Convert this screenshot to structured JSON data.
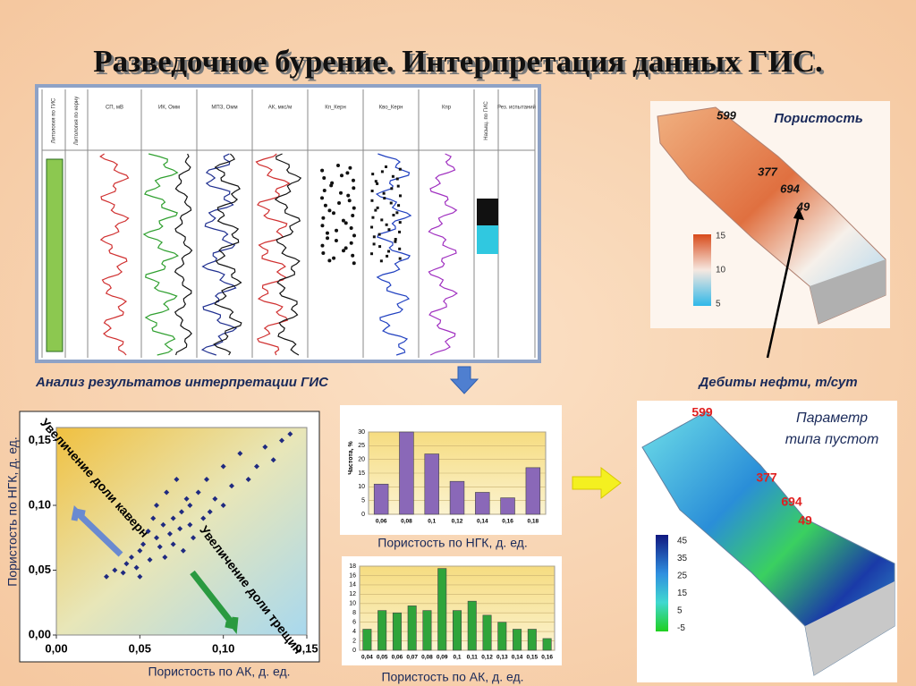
{
  "title": "Разведочное  бурение. Интерпретация данных ГИС.",
  "log_panel": {
    "headers": [
      "Литология по ГИС",
      "Литология по керну",
      "СП, мВ",
      "ИК, Омм",
      "МПЗ, Омм",
      "АК, мкс/м",
      "Кп_Керн",
      "Кво_Керн",
      "Кпр",
      "Насыщ. по ГИС",
      "Рез. испытаний"
    ]
  },
  "captions": {
    "interpretation": "Анализ результатов интерпретации ГИС",
    "oil_rates": "Дебиты нефти, т/сут"
  },
  "porosity_model": {
    "title": "Пористость",
    "wells": [
      "599",
      "377",
      "694",
      "49"
    ],
    "scale": [
      15,
      10,
      5
    ]
  },
  "void_model": {
    "title": [
      "Параметр",
      "типа пустот"
    ],
    "wells": [
      "599",
      "377",
      "694",
      "49"
    ],
    "scale": [
      45,
      35,
      25,
      15,
      5,
      -5
    ]
  },
  "chart_data": [
    {
      "type": "scatter",
      "x_label": "Пористость по АК, д. ед.",
      "y_label": "Пористость по НГК, д. ед.",
      "annotations": [
        "Увеличение доли каверн",
        "Увеличение доли трещин"
      ],
      "color": "#1f2a80",
      "x": [
        0.03,
        0.035,
        0.04,
        0.042,
        0.045,
        0.048,
        0.05,
        0.05,
        0.052,
        0.055,
        0.056,
        0.058,
        0.06,
        0.06,
        0.062,
        0.064,
        0.065,
        0.066,
        0.068,
        0.07,
        0.07,
        0.072,
        0.074,
        0.075,
        0.076,
        0.078,
        0.08,
        0.08,
        0.082,
        0.085,
        0.088,
        0.09,
        0.092,
        0.095,
        0.1,
        0.1,
        0.105,
        0.11,
        0.115,
        0.12,
        0.125,
        0.13,
        0.135,
        0.14
      ],
      "values": [
        0.045,
        0.05,
        0.048,
        0.055,
        0.06,
        0.052,
        0.065,
        0.045,
        0.07,
        0.08,
        0.058,
        0.09,
        0.075,
        0.1,
        0.068,
        0.085,
        0.06,
        0.11,
        0.078,
        0.09,
        0.07,
        0.12,
        0.082,
        0.095,
        0.065,
        0.105,
        0.085,
        0.1,
        0.075,
        0.11,
        0.09,
        0.12,
        0.095,
        0.105,
        0.13,
        0.1,
        0.115,
        0.14,
        0.12,
        0.13,
        0.145,
        0.135,
        0.15,
        0.155
      ],
      "xlim": [
        0,
        0.15
      ],
      "ylim": [
        0,
        0.16
      ],
      "xticks": [
        {
          "value": 0,
          "label": "0,00"
        },
        {
          "value": 0.05,
          "label": "0,05"
        },
        {
          "value": 0.1,
          "label": "0,10"
        },
        {
          "value": 0.15,
          "label": "0,15"
        }
      ],
      "yticks": [
        {
          "value": 0,
          "label": "0,00"
        },
        {
          "value": 0.05,
          "label": "0,05"
        },
        {
          "value": 0.1,
          "label": "0,10"
        },
        {
          "value": 0.15,
          "label": "0,15"
        }
      ]
    },
    {
      "type": "bar",
      "x_label": "Пористость по НГК, д. ед.",
      "y_label": "Частота, %",
      "color": "#8a68b8",
      "categories": [
        "0,06",
        "0,08",
        "0,1",
        "0,12",
        "0,14",
        "0,16",
        "0,18"
      ],
      "values": [
        11,
        30,
        22,
        12,
        8,
        6,
        17
      ],
      "ylim": [
        0,
        30
      ],
      "yticks": [
        0,
        5,
        10,
        15,
        20,
        25,
        30
      ],
      "grid": true
    },
    {
      "type": "bar",
      "x_label": "Пористость по АК, д. ед.",
      "color": "#2fa43a",
      "categories": [
        "0,04",
        "0,05",
        "0,06",
        "0,07",
        "0,08",
        "0,09",
        "0,1",
        "0,11",
        "0,12",
        "0,13",
        "0,14",
        "0,15",
        "0,16"
      ],
      "values": [
        4.5,
        8.5,
        8,
        9.5,
        8.5,
        17.5,
        8.5,
        10.5,
        7.5,
        6,
        4.5,
        4.5,
        2.5
      ],
      "ylim": [
        0,
        18
      ],
      "yticks": [
        0,
        2,
        4,
        6,
        8,
        10,
        12,
        14,
        16,
        18
      ],
      "grid": true
    }
  ]
}
